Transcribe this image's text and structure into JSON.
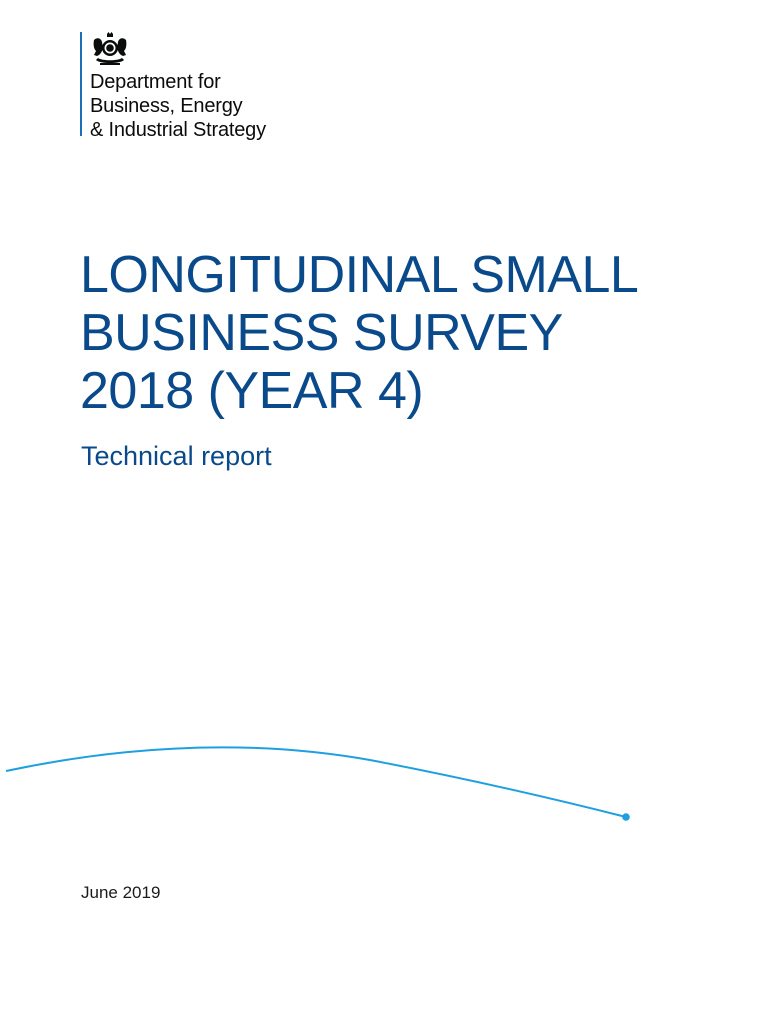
{
  "organisation": {
    "logo_icon": "royal-coat-of-arms-icon",
    "name_lines": [
      "Department for",
      "Business, Energy",
      "& Industrial Strategy"
    ]
  },
  "document": {
    "title_lines": [
      "LONGITUDINAL SMALL",
      "BUSINESS SURVEY",
      "2018 (YEAR 4)"
    ],
    "subtitle": "Technical report",
    "date": "June 2019"
  },
  "colors": {
    "title": "#0a4a8a",
    "accent_line": "#1ea0e0",
    "logo_bar": "#1d70b8",
    "body_text": "#1b1b1b"
  }
}
